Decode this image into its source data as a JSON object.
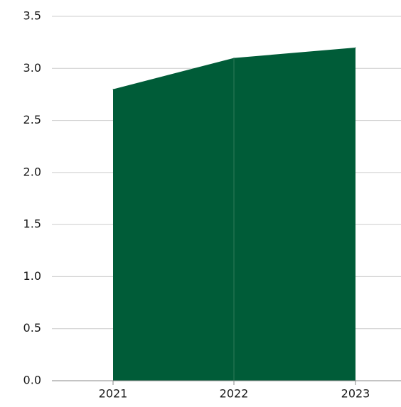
{
  "chart_data": {
    "type": "area",
    "x": [
      "2021",
      "2022",
      "2023"
    ],
    "values": [
      2.8,
      3.1,
      3.2
    ],
    "ylim": [
      0,
      3.5
    ],
    "yticks": [
      "0.0",
      "0.5",
      "1.0",
      "1.5",
      "2.0",
      "2.5",
      "3.0",
      "3.5"
    ],
    "grid": true,
    "legend": "none",
    "colors": {
      "area": "#005c38",
      "grid": "#cccccc",
      "axis": "#888888",
      "separator": "#2e7a57"
    }
  }
}
